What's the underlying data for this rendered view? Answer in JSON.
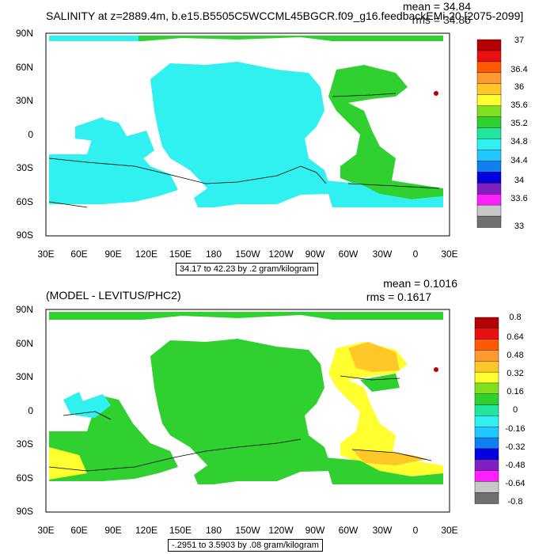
{
  "panels": [
    {
      "title": "SALINITY at z=2889.4m, b.e15.B5505C5WCCML45BGCR.f09_g16.feedbackEMi-20 [2075-2099]",
      "mean": "mean = 34.84",
      "rms": "rms = 34.85",
      "range_label": "34.17 to 42.23 by .2 gram/kilogram",
      "colorbar_labels": [
        "37",
        "36.4",
        "36",
        "35.6",
        "35.2",
        "34.8",
        "34.4",
        "34",
        "33.6",
        "33"
      ]
    },
    {
      "title": "(MODEL - LEVITUS/PHC2)",
      "mean": "mean = 0.1016",
      "rms": "rms = 0.1617",
      "range_label": "-.2951 to 3.5903 by .08 gram/kilogram",
      "colorbar_labels": [
        "0.8",
        "0.64",
        "0.48",
        "0.32",
        "0.16",
        "0",
        "-0.16",
        "-0.32",
        "-0.48",
        "-0.64",
        "-0.8"
      ]
    }
  ],
  "axes": {
    "lat_labels": [
      "90N",
      "60N",
      "30N",
      "0",
      "30S",
      "60S",
      "90S"
    ],
    "lon_labels": [
      "30E",
      "60E",
      "90E",
      "120E",
      "150E",
      "180",
      "150W",
      "120W",
      "90W",
      "60W",
      "30W",
      "0",
      "30E"
    ]
  },
  "colors": {
    "top_scale": [
      "#b30000",
      "#e81010",
      "#ff5a00",
      "#ff9a30",
      "#ffc828",
      "#ffff30",
      "#80e020",
      "#30d030",
      "#20e6a0",
      "#30f0f0",
      "#20c8ff",
      "#1080f0",
      "#0000e0",
      "#8020c0",
      "#ff20ff",
      "#c8c8c8",
      "#707070"
    ],
    "bottom_scale": [
      "#b30000",
      "#e81010",
      "#ff5a00",
      "#ff9a30",
      "#ffc828",
      "#ffff30",
      "#80e020",
      "#30d030",
      "#20e6a0",
      "#30f0f0",
      "#20c8ff",
      "#1080f0",
      "#0000e0",
      "#8020c0",
      "#ff20ff",
      "#c8c8c8",
      "#707070"
    ],
    "top_ocean": "#30f0f0",
    "top_atlantic": "#30d030",
    "bottom_ocean": "#30d030",
    "bottom_atlantic": "#ffff30",
    "bottom_cyan": "#30f0f0",
    "bottom_orange": "#ffc828"
  }
}
